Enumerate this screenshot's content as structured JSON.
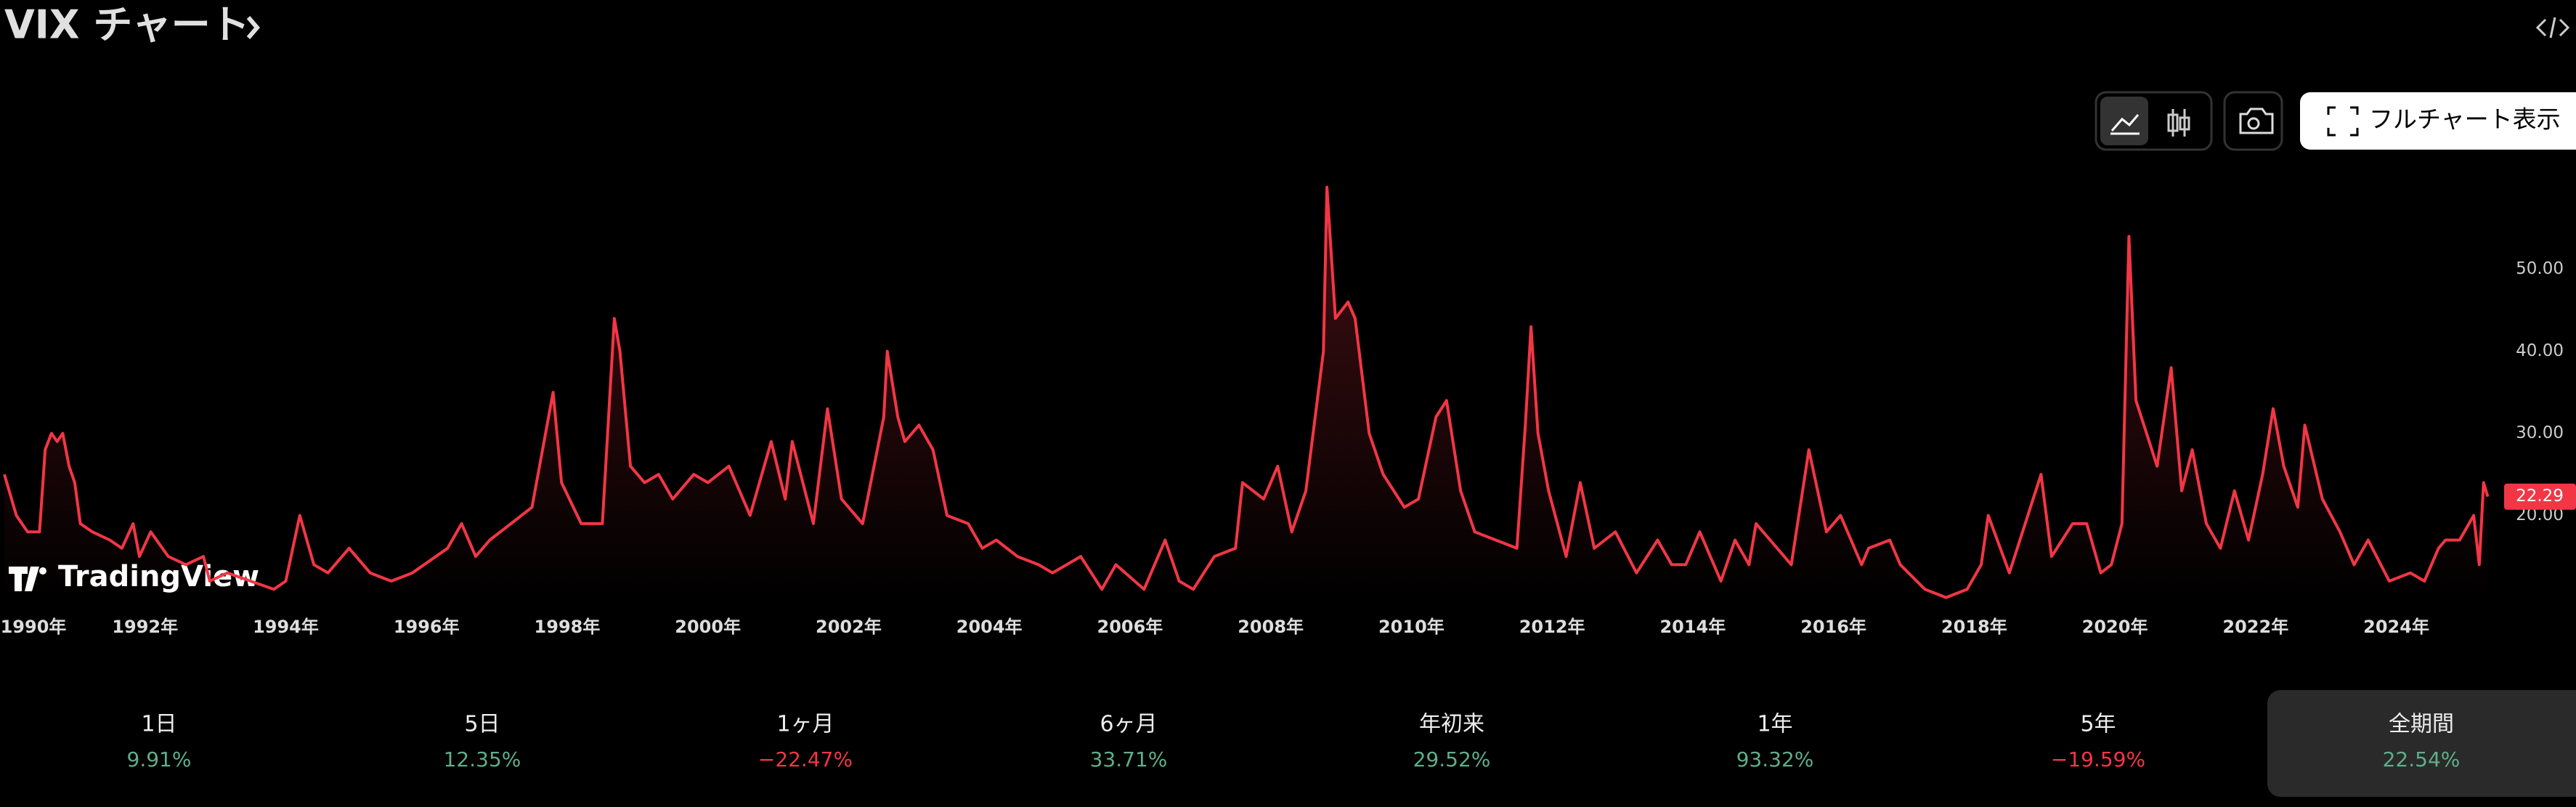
{
  "header": {
    "title": "VIX チャート",
    "button": "フルチャート表示"
  },
  "chart_data": {
    "type": "line",
    "grid": false,
    "watermark": "TradingView",
    "xlim": [
      1990,
      2025.45
    ],
    "ylim": [
      9.7,
      62.8
    ],
    "xticks": [
      {
        "value": 1990,
        "label": "1990年"
      },
      {
        "value": 1992,
        "label": "1992年"
      },
      {
        "value": 1994,
        "label": "1994年"
      },
      {
        "value": 1996,
        "label": "1996年"
      },
      {
        "value": 1998,
        "label": "1998年"
      },
      {
        "value": 2000,
        "label": "2000年"
      },
      {
        "value": 2002,
        "label": "2002年"
      },
      {
        "value": 2004,
        "label": "2004年"
      },
      {
        "value": 2006,
        "label": "2006年"
      },
      {
        "value": 2008,
        "label": "2008年"
      },
      {
        "value": 2010,
        "label": "2010年"
      },
      {
        "value": 2012,
        "label": "2012年"
      },
      {
        "value": 2014,
        "label": "2014年"
      },
      {
        "value": 2016,
        "label": "2016年"
      },
      {
        "value": 2018,
        "label": "2018年"
      },
      {
        "value": 2020,
        "label": "2020年"
      },
      {
        "value": 2022,
        "label": "2022年"
      },
      {
        "value": 2024,
        "label": "2024年"
      }
    ],
    "yticks": [
      {
        "value": 20,
        "label": "20.00"
      },
      {
        "value": 30,
        "label": "30.00"
      },
      {
        "value": 40,
        "label": "40.00"
      },
      {
        "value": 50,
        "label": "50.00"
      }
    ],
    "x": [
      1990.0,
      1990.17,
      1990.33,
      1990.5,
      1990.58,
      1990.67,
      1990.75,
      1990.83,
      1990.92,
      1991.0,
      1991.08,
      1991.25,
      1991.5,
      1991.67,
      1991.83,
      1991.92,
      1992.08,
      1992.33,
      1992.58,
      1992.83,
      1992.92,
      1993.17,
      1993.5,
      1993.83,
      1994.0,
      1994.2,
      1994.4,
      1994.6,
      1994.9,
      1995.2,
      1995.5,
      1995.8,
      1996.3,
      1996.5,
      1996.7,
      1996.9,
      1997.2,
      1997.5,
      1997.8,
      1997.92,
      1998.2,
      1998.5,
      1998.67,
      1998.75,
      1998.9,
      1999.1,
      1999.3,
      1999.5,
      1999.8,
      2000.0,
      2000.3,
      2000.6,
      2000.9,
      2001.1,
      2001.2,
      2001.5,
      2001.7,
      2001.9,
      2002.2,
      2002.5,
      2002.55,
      2002.7,
      2002.8,
      2003.0,
      2003.2,
      2003.4,
      2003.7,
      2003.9,
      2004.1,
      2004.4,
      2004.7,
      2004.9,
      2005.3,
      2005.6,
      2005.8,
      2006.2,
      2006.5,
      2006.7,
      2006.9,
      2007.2,
      2007.5,
      2007.6,
      2007.9,
      2008.1,
      2008.3,
      2008.5,
      2008.75,
      2008.8,
      2008.92,
      2009.1,
      2009.2,
      2009.4,
      2009.6,
      2009.9,
      2010.1,
      2010.35,
      2010.5,
      2010.7,
      2010.9,
      2011.2,
      2011.5,
      2011.62,
      2011.7,
      2011.8,
      2011.95,
      2012.2,
      2012.4,
      2012.6,
      2012.9,
      2013.2,
      2013.5,
      2013.7,
      2013.9,
      2014.1,
      2014.4,
      2014.6,
      2014.8,
      2014.9,
      2015.1,
      2015.4,
      2015.65,
      2015.75,
      2015.9,
      2016.1,
      2016.4,
      2016.5,
      2016.8,
      2016.95,
      2017.3,
      2017.6,
      2017.9,
      2018.1,
      2018.2,
      2018.5,
      2018.8,
      2018.95,
      2019.1,
      2019.4,
      2019.6,
      2019.8,
      2019.95,
      2020.1,
      2020.2,
      2020.3,
      2020.45,
      2020.6,
      2020.8,
      2020.95,
      2021.1,
      2021.3,
      2021.5,
      2021.7,
      2021.9,
      2022.1,
      2022.25,
      2022.4,
      2022.6,
      2022.7,
      2022.95,
      2023.2,
      2023.4,
      2023.6,
      2023.9,
      2024.2,
      2024.4,
      2024.6,
      2024.7,
      2024.9,
      2025.1,
      2025.18,
      2025.24,
      2025.3
    ],
    "series": [
      {
        "name": "VIX",
        "color": "#f23645",
        "values": [
          25,
          20,
          18,
          18,
          28,
          30,
          29,
          30,
          26,
          24,
          19,
          18,
          17,
          16,
          19,
          15,
          18,
          15,
          14,
          15,
          12,
          13,
          12,
          11,
          12,
          20,
          14,
          13,
          16,
          13,
          12,
          13,
          16,
          19,
          15,
          17,
          19,
          21,
          35,
          24,
          19,
          19,
          44,
          40,
          26,
          24,
          25,
          22,
          25,
          24,
          26,
          20,
          29,
          22,
          29,
          19,
          33,
          22,
          19,
          32,
          40,
          32,
          29,
          31,
          28,
          20,
          19,
          16,
          17,
          15,
          14,
          13,
          15,
          11,
          14,
          11,
          17,
          12,
          11,
          15,
          16,
          24,
          22,
          26,
          18,
          23,
          40,
          60,
          44,
          46,
          44,
          30,
          25,
          21,
          22,
          32,
          34,
          23,
          18,
          17,
          16,
          31,
          43,
          30,
          23,
          15,
          24,
          16,
          18,
          13,
          17,
          14,
          14,
          18,
          12,
          17,
          14,
          19,
          17,
          14,
          28,
          24,
          18,
          20,
          14,
          16,
          17,
          14,
          11,
          10,
          11,
          14,
          20,
          13,
          21,
          25,
          15,
          19,
          19,
          13,
          14,
          19,
          54,
          34,
          30,
          26,
          38,
          23,
          28,
          19,
          16,
          23,
          17,
          25,
          33,
          26,
          21,
          31,
          22,
          18,
          14,
          17,
          12,
          13,
          12,
          16,
          17,
          17,
          20,
          14,
          24,
          22.29
        ]
      }
    ]
  },
  "performance": [
    {
      "period": "1日",
      "change": "9.91%"
    },
    {
      "period": "5日",
      "change": "12.35%"
    },
    {
      "period": "1ヶ月",
      "change": "−22.47%"
    },
    {
      "period": "6ヶ月",
      "change": "33.71%"
    },
    {
      "period": "年初来",
      "change": "29.52%"
    },
    {
      "period": "1年",
      "change": "93.32%"
    },
    {
      "period": "5年",
      "change": "−19.59%"
    },
    {
      "period": "全期間",
      "change": "22.54%"
    }
  ],
  "active_period_index": 7
}
